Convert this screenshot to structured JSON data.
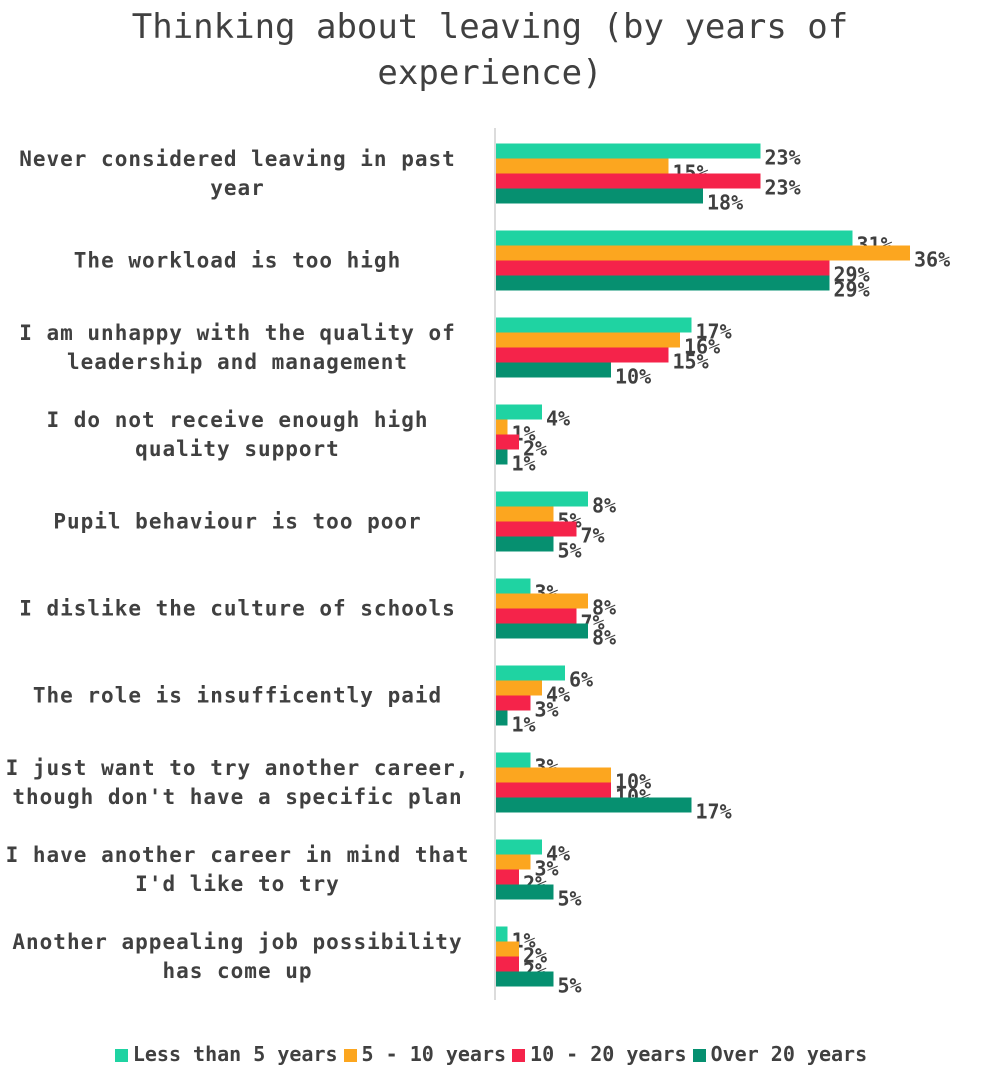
{
  "chart_data": {
    "type": "bar",
    "orientation": "horizontal",
    "title": "Thinking about leaving (by years of experience)",
    "categories": [
      "Never considered leaving in past year",
      "The workload is too high",
      "I am unhappy with the quality of leadership and management",
      "I do not receive enough high quality support",
      "Pupil behaviour is too poor",
      "I dislike the culture of schools",
      "The role is insufficently paid",
      "I just want to try another career, though don't have a specific plan",
      "I have another career in mind that I'd like to try",
      "Another appealing job possibility has come up"
    ],
    "series": [
      {
        "name": "Less than 5 years",
        "color": "#1fd3a2",
        "values": [
          23,
          31,
          17,
          4,
          8,
          3,
          6,
          3,
          4,
          1
        ],
        "value_labels": [
          "23%",
          "31%",
          "17%",
          "4%",
          "8%",
          "3%",
          "6%",
          "3%",
          "4%",
          "1%"
        ]
      },
      {
        "name": "5 - 10 years",
        "color": "#fca61f",
        "values": [
          15,
          36,
          16,
          1,
          5,
          8,
          4,
          10,
          3,
          2
        ],
        "value_labels": [
          "15%",
          "36%",
          "16%",
          "1%",
          "5%",
          "8%",
          "4%",
          "10%",
          "3%",
          "2%"
        ]
      },
      {
        "name": "10 - 20 years",
        "color": "#f5234a",
        "values": [
          23,
          29,
          15,
          2,
          7,
          7,
          3,
          10,
          2,
          2
        ],
        "value_labels": [
          "23%",
          "29%",
          "15%",
          "2%",
          "7%",
          "7%",
          "3%",
          "10%",
          "2%",
          "2%"
        ]
      },
      {
        "name": "Over 20 years",
        "color": "#069070",
        "values": [
          18,
          29,
          10,
          1,
          5,
          8,
          1,
          17,
          5,
          5
        ],
        "value_labels": [
          "18%",
          "29%",
          "10%",
          "1%",
          "5%",
          "8%",
          "1%",
          "17%",
          "5%",
          "5%"
        ]
      }
    ],
    "xlim": [
      0,
      40
    ],
    "legend": "bottom"
  }
}
